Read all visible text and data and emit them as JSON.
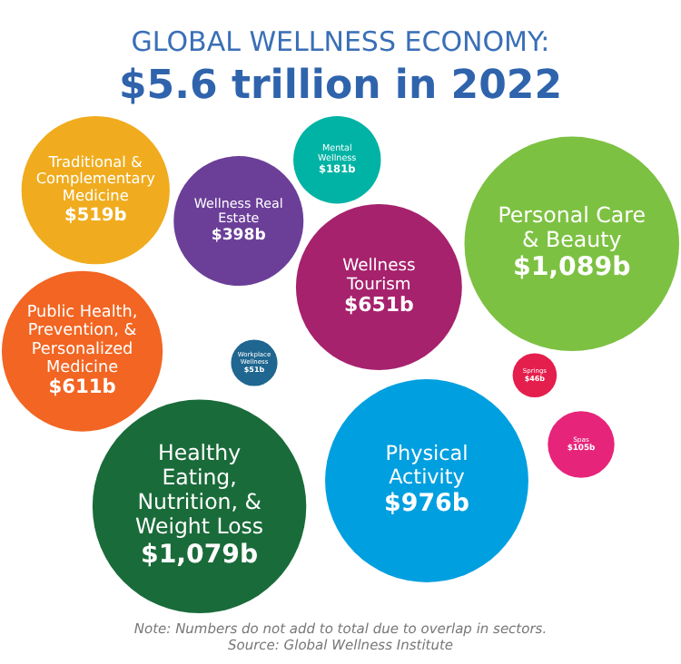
{
  "chart_data": {
    "type": "other",
    "title": "GLOBAL WELLNESS ECONOMY:",
    "subtitle": "$5.6 trillion in 2022",
    "categories": [
      "Personal Care & Beauty",
      "Healthy Eating, Nutrition, & Weight Loss",
      "Physical Activity",
      "Wellness Tourism",
      "Public Health, Prevention, & Personalized Medicine",
      "Traditional & Complementary Medicine",
      "Wellness Real Estate",
      "Mental Wellness",
      "Spas",
      "Workplace Wellness",
      "Springs"
    ],
    "values": [
      1089,
      1079,
      976,
      651,
      611,
      519,
      398,
      181,
      105,
      51,
      46
    ],
    "value_labels": [
      "$1,089b",
      "$1,079b",
      "$976b",
      "$651b",
      "$611b",
      "$519b",
      "$398b",
      "$181b",
      "$105b",
      "$51b",
      "$46b"
    ],
    "colors": [
      "#7dc142",
      "#1a6b3a",
      "#009fe0",
      "#a6226d",
      "#f26522",
      "#f0ac1e",
      "#6b3f98",
      "#00b3a4",
      "#e6247a",
      "#1f6690",
      "#e41e4d"
    ],
    "annotations": [
      "Note: Numbers do not add to total due to overlap in sectors.",
      "Source: Global Wellness Institute"
    ]
  }
}
